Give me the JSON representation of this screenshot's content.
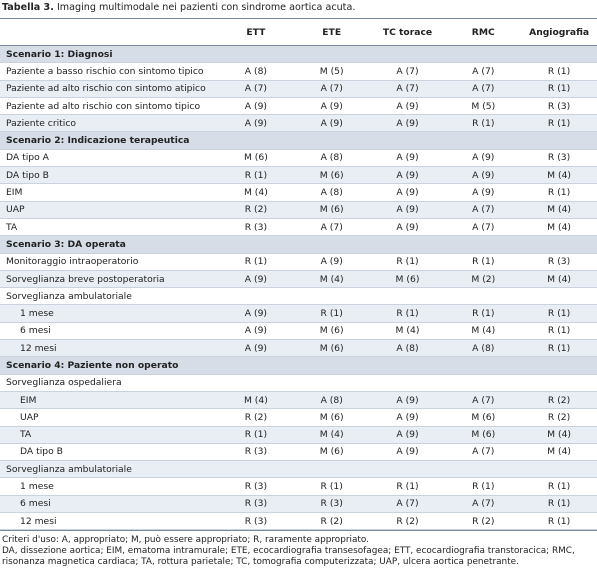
{
  "caption": {
    "label": "Tabella 3.",
    "text": "Imaging multimodale nei pazienti con sindrome aortica acuta."
  },
  "table": {
    "columns": [
      "ETT",
      "ETE",
      "TC torace",
      "RMC",
      "Angiografia"
    ],
    "sections": [
      {
        "title": "Scenario 1: Diagnosi",
        "rows": [
          {
            "label": "Paziente a basso rischio con sintomo tipico",
            "cells": [
              "A (8)",
              "M (5)",
              "A (7)",
              "A (7)",
              "R (1)"
            ]
          },
          {
            "label": "Paziente ad alto rischio con sintomo atipico",
            "cells": [
              "A (7)",
              "A (7)",
              "A (7)",
              "A (7)",
              "R (1)"
            ]
          },
          {
            "label": "Paziente ad alto rischio con sintomo tipico",
            "cells": [
              "A (9)",
              "A (9)",
              "A (9)",
              "M (5)",
              "R (3)"
            ]
          },
          {
            "label": "Paziente critico",
            "cells": [
              "A (9)",
              "A (9)",
              "A (9)",
              "R (1)",
              "R (1)"
            ]
          }
        ]
      },
      {
        "title": "Scenario 2: Indicazione terapeutica",
        "rows": [
          {
            "label": "DA tipo A",
            "cells": [
              "M (6)",
              "A (8)",
              "A (9)",
              "A (9)",
              "R (3)"
            ]
          },
          {
            "label": "DA tipo B",
            "cells": [
              "R (1)",
              "M (6)",
              "A (9)",
              "A (9)",
              "M (4)"
            ]
          },
          {
            "label": "EIM",
            "cells": [
              "M (4)",
              "A (8)",
              "A (9)",
              "A (9)",
              "R (1)"
            ]
          },
          {
            "label": "UAP",
            "cells": [
              "R (2)",
              "M (6)",
              "A (9)",
              "A (7)",
              "M (4)"
            ]
          },
          {
            "label": "TA",
            "cells": [
              "R (3)",
              "A (7)",
              "A (9)",
              "A (7)",
              "M (4)"
            ]
          }
        ]
      },
      {
        "title": "Scenario 3: DA operata",
        "rows": [
          {
            "label": "Monitoraggio intraoperatorio",
            "cells": [
              "R (1)",
              "A (9)",
              "R (1)",
              "R (1)",
              "R (3)"
            ]
          },
          {
            "label": "Sorveglianza breve postoperatoria",
            "cells": [
              "A (9)",
              "M (4)",
              "M (6)",
              "M (2)",
              "M (4)"
            ]
          },
          {
            "label": "Sorveglianza ambulatoriale",
            "rows": [
              {
                "label": "1 mese",
                "cells": [
                  "A (9)",
                  "R (1)",
                  "R (1)",
                  "R (1)",
                  "R (1)"
                ]
              },
              {
                "label": "6 mesi",
                "cells": [
                  "A (9)",
                  "M (6)",
                  "M (4)",
                  "M (4)",
                  "R (1)"
                ]
              },
              {
                "label": "12 mesi",
                "cells": [
                  "A (9)",
                  "M (6)",
                  "A (8)",
                  "A (8)",
                  "R (1)"
                ]
              }
            ]
          }
        ]
      },
      {
        "title": "Scenario 4: Paziente non operato",
        "rows": [
          {
            "label": "Sorveglianza ospedaliera",
            "rows": [
              {
                "label": "EIM",
                "cells": [
                  "M (4)",
                  "A (8)",
                  "A (9)",
                  "A (7)",
                  "R (2)"
                ]
              },
              {
                "label": "UAP",
                "cells": [
                  "R (2)",
                  "M (6)",
                  "A (9)",
                  "M (6)",
                  "R (2)"
                ]
              },
              {
                "label": "TA",
                "cells": [
                  "R (1)",
                  "M (4)",
                  "A (9)",
                  "M (6)",
                  "M (4)"
                ]
              },
              {
                "label": "DA tipo B",
                "cells": [
                  "R (3)",
                  "M (6)",
                  "A (9)",
                  "A (7)",
                  "M (4)"
                ]
              }
            ]
          },
          {
            "label": "Sorveglianza ambulatoriale",
            "rows": [
              {
                "label": "1 mese",
                "cells": [
                  "R (3)",
                  "R (1)",
                  "R (1)",
                  "R (1)",
                  "R (1)"
                ]
              },
              {
                "label": "6 mesi",
                "cells": [
                  "R (3)",
                  "R (3)",
                  "A (7)",
                  "A (7)",
                  "R (1)"
                ]
              },
              {
                "label": "12 mesi",
                "cells": [
                  "R (3)",
                  "R (2)",
                  "R (2)",
                  "R (2)",
                  "R (1)"
                ]
              }
            ]
          }
        ]
      }
    ]
  },
  "notes": [
    "Criteri d'uso: A, appropriato; M, può essere appropriato; R, raramente appropriato.",
    "DA, dissezione aortica; EIM, ematoma intramurale; ETE, ecocardiografia transesofagea; ETT, ecocardiografia transtoracica; RMC, risonanza magnetica cardiaca; TA, rottura parietale; TC, tomografia computerizzata; UAP, ulcera aortica penetrante."
  ]
}
